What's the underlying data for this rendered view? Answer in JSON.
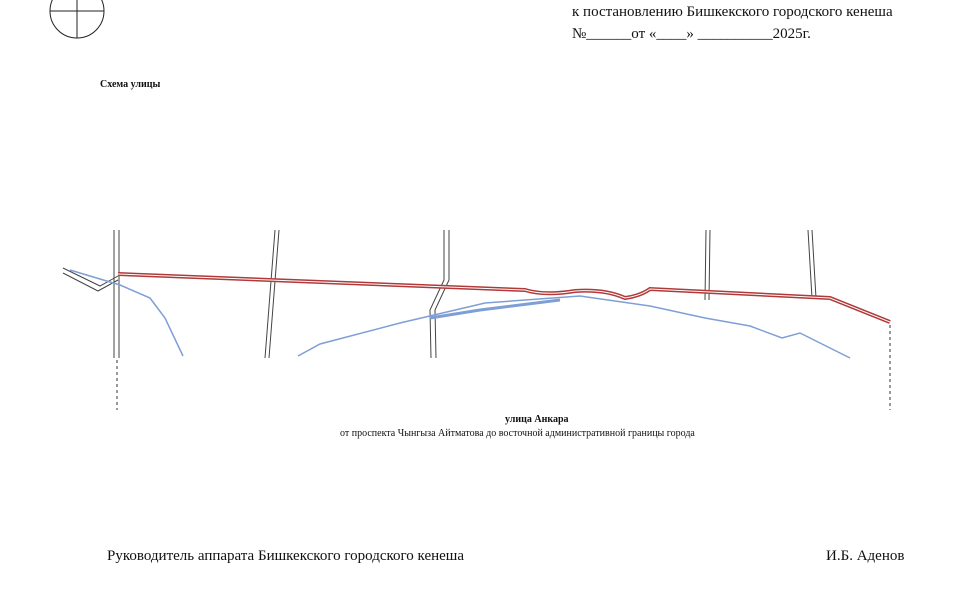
{
  "header": {
    "decree": "к постановлению  Бишкекского городского кенеша",
    "number_line": "№______от «____» __________2025г."
  },
  "scheme": {
    "title": "Схема улицы",
    "street_name": "улица Анкара",
    "street_extent": "от проспекта Чынгыза Айтматова до восточной административной границы города"
  },
  "footer": {
    "position": "Руководитель аппарата Бишкекского городского кенеша",
    "signatory": "И.Б. Аденов"
  }
}
